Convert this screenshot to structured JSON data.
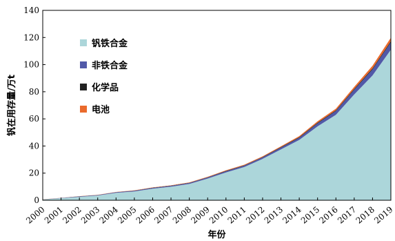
{
  "chart_data": {
    "type": "area",
    "stacked": true,
    "xlabel": "年份",
    "ylabel": "钒在用存量/万t",
    "x": [
      "2000",
      "2001",
      "2002",
      "2003",
      "2004",
      "2005",
      "2006",
      "2007",
      "2008",
      "2009",
      "2010",
      "2011",
      "2012",
      "2013",
      "2014",
      "2015",
      "2016",
      "2017",
      "2018",
      "2019"
    ],
    "ylim": [
      0,
      140
    ],
    "yticks": [
      "0",
      "20",
      "40",
      "60",
      "80",
      "100",
      "120",
      "140"
    ],
    "grid": false,
    "legend_position": "upper-left",
    "series": [
      {
        "name": "钒铁合金",
        "color": "#acd6da",
        "values": [
          0.5,
          1.5,
          2.5,
          3.5,
          5.5,
          6.5,
          8.5,
          10,
          12,
          16,
          20.5,
          24.5,
          30.5,
          37.5,
          44.5,
          54.5,
          63,
          78,
          92,
          111
        ]
      },
      {
        "name": "非铁合金",
        "color": "#5159a8",
        "values": [
          0.1,
          0.2,
          0.3,
          0.3,
          0.4,
          0.5,
          0.6,
          0.6,
          0.7,
          0.8,
          0.9,
          1.0,
          1.1,
          1.3,
          1.6,
          2.2,
          2.8,
          3.5,
          4.5,
          5.5
        ]
      },
      {
        "name": "化学品",
        "color": "#222222",
        "values": [
          0.05,
          0.05,
          0.1,
          0.1,
          0.1,
          0.1,
          0.2,
          0.2,
          0.2,
          0.2,
          0.3,
          0.3,
          0.3,
          0.4,
          0.4,
          0.5,
          0.5,
          0.6,
          0.7,
          0.8
        ]
      },
      {
        "name": "电池",
        "color": "#ea6a2c",
        "values": [
          0.05,
          0.05,
          0.1,
          0.1,
          0.1,
          0.2,
          0.2,
          0.2,
          0.3,
          0.3,
          0.4,
          0.4,
          0.5,
          0.6,
          0.8,
          1.0,
          1.2,
          1.5,
          2.0,
          2.5
        ]
      }
    ]
  }
}
